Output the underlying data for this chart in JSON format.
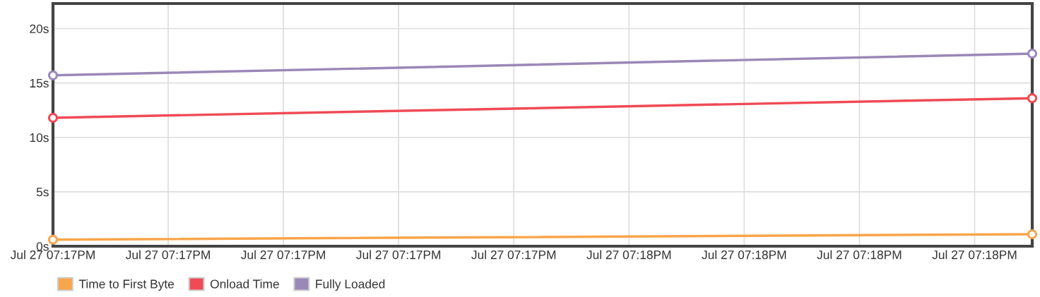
{
  "chart_data": {
    "type": "line",
    "categories": [
      "Jul 27 07:17PM",
      null,
      "Jul 27 07:17PM",
      null,
      "Jul 27 07:17PM",
      null,
      "Jul 27 07:17PM",
      null,
      "Jul 27 07:17PM",
      null,
      "Jul 27 07:18PM",
      null,
      "Jul 27 07:18PM",
      null,
      "Jul 27 07:18PM",
      null,
      "Jul 27 07:18PM",
      null
    ],
    "series": [
      {
        "name": "Time to First Byte",
        "color": "#f9a54a",
        "values": [
          0.6,
          null,
          null,
          null,
          null,
          null,
          null,
          null,
          null,
          null,
          null,
          null,
          null,
          null,
          null,
          null,
          null,
          1.1
        ]
      },
      {
        "name": "Onload Time",
        "color": "#f04a55",
        "values": [
          11.8,
          null,
          null,
          null,
          null,
          null,
          null,
          null,
          null,
          null,
          null,
          null,
          null,
          null,
          null,
          null,
          null,
          13.6
        ]
      },
      {
        "name": "Fully Loaded",
        "color": "#9a88b8",
        "values": [
          15.7,
          null,
          null,
          null,
          null,
          null,
          null,
          null,
          null,
          null,
          null,
          null,
          null,
          null,
          null,
          null,
          null,
          17.7
        ]
      }
    ],
    "ylim": [
      0,
      22.3
    ],
    "yticks": [
      {
        "value": 0,
        "label": "0s"
      },
      {
        "value": 5,
        "label": "5s"
      },
      {
        "value": 10,
        "label": "10s"
      },
      {
        "value": 15,
        "label": "15s"
      },
      {
        "value": 20,
        "label": "20s"
      }
    ],
    "grid": true,
    "legend": "bottom left",
    "marker": "circle",
    "line_style": "solid"
  }
}
